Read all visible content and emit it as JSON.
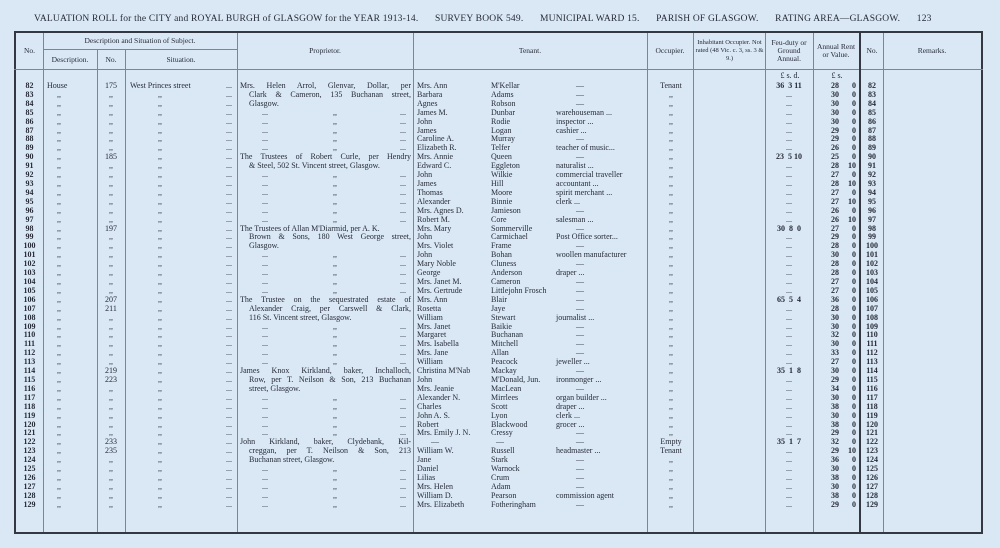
{
  "title": {
    "roll": "VALUATION ROLL for the CITY and ROYAL BURGH of GLASGOW for the YEAR 1913-14.",
    "survey_book": "SURVEY BOOK 549.",
    "ward": "MUNICIPAL WARD 15.",
    "parish": "PARISH OF GLASGOW.",
    "rating_area": "RATING AREA—GLASGOW.",
    "page": "123"
  },
  "headers": {
    "no": "No.",
    "description_group": "Description and Situation of Subject.",
    "description": "Description.",
    "house_no": "No.",
    "situation": "Situation.",
    "proprietor": "Proprietor.",
    "tenant": "Tenant.",
    "occupier": "Occupier.",
    "inhabitant": "Inhabitant Occupier. Not rated (48 Vic. c. 3, ss. 3 & 9.)",
    "feu_duty": "Feu-duty or Ground Annual.",
    "annual_rent": "Annual Rent or Value.",
    "no2": "No.",
    "remarks": "Remarks.",
    "feu_units": "£  s.  d.",
    "rent_units": "£  s."
  },
  "marks": {
    "ditto": ",,",
    "leader": "...",
    "dash": "—"
  },
  "rows": [
    {
      "no": "82",
      "desc": "House",
      "hno": "175",
      "sit": "West Princes street",
      "prop": "Mrs. Helen Arrol, Glenvar, Dollar, per",
      "first": "Mrs. Ann",
      "sur": "M'Kellar",
      "occ": "—",
      "occupier": "Tenant",
      "feu": "36  3 11",
      "rl": "28",
      "rs": "0"
    },
    {
      "no": "83",
      "desc": ",,",
      "hno": ",,",
      "sit": ",,",
      "prop": "Clark & Cameron, 135 Buchanan street,",
      "first": "Barbara",
      "sur": "Adams",
      "occ": "—",
      "occupier": ",,",
      "feu": "...",
      "rl": "30",
      "rs": "0"
    },
    {
      "no": "84",
      "desc": ",,",
      "hno": ",,",
      "sit": ",,",
      "prop": "Glasgow.",
      "first": "Agnes",
      "sur": "Robson",
      "occ": "—",
      "occupier": ",,",
      "feu": "...",
      "rl": "30",
      "rs": "0"
    },
    {
      "no": "85",
      "desc": ",,",
      "hno": ",,",
      "sit": ",,",
      "prop": "",
      "first": "James M.",
      "sur": "Dunbar",
      "occ": "warehouseman ...",
      "occupier": ",,",
      "feu": "...",
      "rl": "30",
      "rs": "0"
    },
    {
      "no": "86",
      "desc": ",,",
      "hno": ",,",
      "sit": ",,",
      "prop": "",
      "first": "John",
      "sur": "Rodie",
      "occ": "inspector ...",
      "occupier": ",,",
      "feu": "...",
      "rl": "30",
      "rs": "0"
    },
    {
      "no": "87",
      "desc": ",,",
      "hno": ",,",
      "sit": ",,",
      "prop": "",
      "first": "James",
      "sur": "Logan",
      "occ": "cashier ...",
      "occupier": ",,",
      "feu": "...",
      "rl": "29",
      "rs": "0"
    },
    {
      "no": "88",
      "desc": ",,",
      "hno": ",,",
      "sit": ",,",
      "prop": "",
      "first": "Caroline A.",
      "sur": "Murray",
      "occ": "—",
      "occupier": ",,",
      "feu": "...",
      "rl": "29",
      "rs": "0"
    },
    {
      "no": "89",
      "desc": ",,",
      "hno": ",,",
      "sit": ",,",
      "prop": "",
      "first": "Elizabeth R.",
      "sur": "Telfer",
      "occ": "teacher of music...",
      "occupier": ",,",
      "feu": "...",
      "rl": "26",
      "rs": "0"
    },
    {
      "no": "90",
      "desc": ",,",
      "hno": "185",
      "sit": ",,",
      "prop": "The Trustees of Robert Curle, per Hendry",
      "first": "Mrs. Annie",
      "sur": "Queen",
      "occ": "—",
      "occupier": ",,",
      "feu": "23  5 10",
      "rl": "25",
      "rs": "0"
    },
    {
      "no": "91",
      "desc": ",,",
      "hno": ",,",
      "sit": ",,",
      "prop": "& Steel, 502 St. Vincent street, Glasgow.",
      "first": "Edward C.",
      "sur": "Eggleton",
      "occ": "naturalist ...",
      "occupier": ",,",
      "feu": "...",
      "rl": "28",
      "rs": "10"
    },
    {
      "no": "92",
      "desc": ",,",
      "hno": ",,",
      "sit": ",,",
      "prop": "",
      "first": "John",
      "sur": "Wilkie",
      "occ": "commercial traveller",
      "occupier": ",,",
      "feu": "...",
      "rl": "27",
      "rs": "0"
    },
    {
      "no": "93",
      "desc": ",,",
      "hno": ",,",
      "sit": ",,",
      "prop": "",
      "first": "James",
      "sur": "Hill",
      "occ": "accountant ...",
      "occupier": ",,",
      "feu": "...",
      "rl": "28",
      "rs": "10"
    },
    {
      "no": "94",
      "desc": ",,",
      "hno": ",,",
      "sit": ",,",
      "prop": "",
      "first": "Thomas",
      "sur": "Moore",
      "occ": "spirit merchant ...",
      "occupier": ",,",
      "feu": "...",
      "rl": "27",
      "rs": "0"
    },
    {
      "no": "95",
      "desc": ",,",
      "hno": ",,",
      "sit": ",,",
      "prop": "",
      "first": "Alexander",
      "sur": "Binnie",
      "occ": "clerk ...",
      "occupier": ",,",
      "feu": "...",
      "rl": "27",
      "rs": "10"
    },
    {
      "no": "96",
      "desc": ",,",
      "hno": ",,",
      "sit": ",,",
      "prop": "",
      "first": "Mrs. Agnes D.",
      "sur": "Jamieson",
      "occ": "—",
      "occupier": ",,",
      "feu": "...",
      "rl": "26",
      "rs": "0"
    },
    {
      "no": "97",
      "desc": ",,",
      "hno": ",,",
      "sit": ",,",
      "prop": "",
      "first": "Robert M.",
      "sur": "Core",
      "occ": "salesman ...",
      "occupier": ",,",
      "feu": "...",
      "rl": "26",
      "rs": "10"
    },
    {
      "no": "98",
      "desc": ",,",
      "hno": "197",
      "sit": ",,",
      "prop": "The Trustees of Allan M'Diarmid, per A. K.",
      "first": "Mrs. Mary",
      "sur": "Sommerville",
      "occ": "—",
      "occupier": ",,",
      "feu": "30  8  0",
      "rl": "27",
      "rs": "0"
    },
    {
      "no": "99",
      "desc": ",,",
      "hno": ",,",
      "sit": ",,",
      "prop": "Brown & Sons, 180 West George street,",
      "first": "John",
      "sur": "Carmichael",
      "occ": "Post Office sorter...",
      "occupier": ",,",
      "feu": "...",
      "rl": "29",
      "rs": "0"
    },
    {
      "no": "100",
      "desc": ",,",
      "hno": ",,",
      "sit": ",,",
      "prop": "Glasgow.",
      "first": "Mrs. Violet",
      "sur": "Frame",
      "occ": "—",
      "occupier": ",,",
      "feu": "...",
      "rl": "28",
      "rs": "0"
    },
    {
      "no": "101",
      "desc": ",,",
      "hno": ",,",
      "sit": ",,",
      "prop": "",
      "first": "John",
      "sur": "Bohan",
      "occ": "woollen manufacturer",
      "occupier": ",,",
      "feu": "...",
      "rl": "30",
      "rs": "0"
    },
    {
      "no": "102",
      "desc": ",,",
      "hno": ",,",
      "sit": ",,",
      "prop": "",
      "first": "Mary Noble",
      "sur": "Cluness",
      "occ": "—",
      "occupier": ",,",
      "feu": "...",
      "rl": "28",
      "rs": "0"
    },
    {
      "no": "103",
      "desc": ",,",
      "hno": ",,",
      "sit": ",,",
      "prop": "",
      "first": "George",
      "sur": "Anderson",
      "occ": "draper ...",
      "occupier": ",,",
      "feu": "...",
      "rl": "28",
      "rs": "0"
    },
    {
      "no": "104",
      "desc": ",,",
      "hno": ",,",
      "sit": ",,",
      "prop": "",
      "first": "Mrs. Janet M.",
      "sur": "Cameron",
      "occ": "—",
      "occupier": ",,",
      "feu": "...",
      "rl": "27",
      "rs": "0"
    },
    {
      "no": "105",
      "desc": ",,",
      "hno": ",,",
      "sit": ",,",
      "prop": "",
      "first": "Mrs. Gertrude",
      "sur": "Littlejohn Frosch",
      "occ": "—",
      "occupier": ",,",
      "feu": "...",
      "rl": "27",
      "rs": "0"
    },
    {
      "no": "106",
      "desc": ",,",
      "hno": "207",
      "sit": ",,",
      "prop": "The Trustee on the sequestrated estate of",
      "first": "Mrs. Ann",
      "sur": "Blair",
      "occ": "—",
      "occupier": ",,",
      "feu": "65  5  4",
      "rl": "36",
      "rs": "0"
    },
    {
      "no": "107",
      "desc": ",,",
      "hno": "211",
      "sit": ",,",
      "prop": "Alexander Craig, per Carswell & Clark,",
      "first": "Rosetta",
      "sur": "Jaye",
      "occ": "—",
      "occupier": ",,",
      "feu": "...",
      "rl": "28",
      "rs": "0"
    },
    {
      "no": "108",
      "desc": ",,",
      "hno": ",,",
      "sit": ",,",
      "prop": "116 St. Vincent street, Glasgow.",
      "first": "William",
      "sur": "Stewart",
      "occ": "journalist ...",
      "occupier": ",,",
      "feu": "...",
      "rl": "30",
      "rs": "0"
    },
    {
      "no": "109",
      "desc": ",,",
      "hno": ",,",
      "sit": ",,",
      "prop": "",
      "first": "Mrs. Janet",
      "sur": "Baikie",
      "occ": "—",
      "occupier": ",,",
      "feu": "...",
      "rl": "30",
      "rs": "0"
    },
    {
      "no": "110",
      "desc": ",,",
      "hno": ",,",
      "sit": ",,",
      "prop": "",
      "first": "Margaret",
      "sur": "Buchanan",
      "occ": "—",
      "occupier": ",,",
      "feu": "...",
      "rl": "32",
      "rs": "0"
    },
    {
      "no": "111",
      "desc": ",,",
      "hno": ",,",
      "sit": ",,",
      "prop": "",
      "first": "Mrs. Isabella",
      "sur": "Mitchell",
      "occ": "—",
      "occupier": ",,",
      "feu": "...",
      "rl": "30",
      "rs": "0"
    },
    {
      "no": "112",
      "desc": ",,",
      "hno": ",,",
      "sit": ",,",
      "prop": "",
      "first": "Mrs. Jane",
      "sur": "Allan",
      "occ": "—",
      "occupier": ",,",
      "feu": "...",
      "rl": "33",
      "rs": "0"
    },
    {
      "no": "113",
      "desc": ",,",
      "hno": ",,",
      "sit": ",,",
      "prop": "",
      "first": "William",
      "sur": "Peacock",
      "occ": "jeweller ...",
      "occupier": ",,",
      "feu": "...",
      "rl": "27",
      "rs": "0"
    },
    {
      "no": "114",
      "desc": ",,",
      "hno": "219",
      "sit": ",,",
      "prop": "James Knox Kirkland, baker, Inchalloch,",
      "first": "Christina M'Nab",
      "sur": "Mackay",
      "occ": "—",
      "occupier": ",,",
      "feu": "35  1  8",
      "rl": "30",
      "rs": "0"
    },
    {
      "no": "115",
      "desc": ",,",
      "hno": "223",
      "sit": ",,",
      "prop": "Row, per T. Neilson & Son, 213 Buchanan",
      "first": "John",
      "sur": "M'Donald, Jun.",
      "occ": "ironmonger ...",
      "occupier": ",,",
      "feu": "...",
      "rl": "29",
      "rs": "0"
    },
    {
      "no": "116",
      "desc": ",,",
      "hno": ",,",
      "sit": ",,",
      "prop": "street, Glasgow.",
      "first": "Mrs. Jeanie",
      "sur": "MacLean",
      "occ": "—",
      "occupier": ",,",
      "feu": "...",
      "rl": "34",
      "rs": "0"
    },
    {
      "no": "117",
      "desc": ",,",
      "hno": ",,",
      "sit": ",,",
      "prop": "",
      "first": "Alexander N.",
      "sur": "Mirrlees",
      "occ": "organ builder ...",
      "occupier": ",,",
      "feu": "...",
      "rl": "30",
      "rs": "0"
    },
    {
      "no": "118",
      "desc": ",,",
      "hno": ",,",
      "sit": ",,",
      "prop": "",
      "first": "Charles",
      "sur": "Scott",
      "occ": "draper ...",
      "occupier": ",,",
      "feu": "...",
      "rl": "38",
      "rs": "0"
    },
    {
      "no": "119",
      "desc": ",,",
      "hno": ",,",
      "sit": ",,",
      "prop": "",
      "first": "John A. S.",
      "sur": "Lyon",
      "occ": "clerk ...",
      "occupier": ",,",
      "feu": "...",
      "rl": "30",
      "rs": "0"
    },
    {
      "no": "120",
      "desc": ",,",
      "hno": ",,",
      "sit": ",,",
      "prop": "",
      "first": "Robert",
      "sur": "Blackwood",
      "occ": "grocer ...",
      "occupier": ",,",
      "feu": "...",
      "rl": "38",
      "rs": "0"
    },
    {
      "no": "121",
      "desc": ",,",
      "hno": ",,",
      "sit": ",,",
      "prop": "",
      "first": "Mrs. Emily J. N.",
      "sur": "Cressy",
      "occ": "—",
      "occupier": ",,",
      "feu": "...",
      "rl": "29",
      "rs": "0"
    },
    {
      "no": "122",
      "desc": ",,",
      "hno": "233",
      "sit": ",,",
      "prop": "John Kirkland, baker, Clydebank, Kil-",
      "first": "—",
      "sur": "—",
      "occ": "—",
      "occupier": "Empty",
      "feu": "35  1  7",
      "rl": "32",
      "rs": "0"
    },
    {
      "no": "123",
      "desc": ",,",
      "hno": "235",
      "sit": ",,",
      "prop": "creggan, per T. Neilson & Son, 213",
      "first": "William W.",
      "sur": "Russell",
      "occ": "headmaster ...",
      "occupier": "Tenant",
      "feu": "...",
      "rl": "29",
      "rs": "10"
    },
    {
      "no": "124",
      "desc": ",,",
      "hno": ",,",
      "sit": ",,",
      "prop": "Buchanan street, Glasgow.",
      "first": "Jane",
      "sur": "Stark",
      "occ": "—",
      "occupier": ",,",
      "feu": "...",
      "rl": "36",
      "rs": "0"
    },
    {
      "no": "125",
      "desc": ",,",
      "hno": ",,",
      "sit": ",,",
      "prop": "",
      "first": "Daniel",
      "sur": "Warnock",
      "occ": "—",
      "occupier": ",,",
      "feu": "...",
      "rl": "30",
      "rs": "0"
    },
    {
      "no": "126",
      "desc": ",,",
      "hno": ",,",
      "sit": ",,",
      "prop": "",
      "first": "Lilias",
      "sur": "Crum",
      "occ": "—",
      "occupier": ",,",
      "feu": "...",
      "rl": "38",
      "rs": "0"
    },
    {
      "no": "127",
      "desc": ",,",
      "hno": ",,",
      "sit": ",,",
      "prop": "",
      "first": "Mrs. Helen",
      "sur": "Adam",
      "occ": "—",
      "occupier": ",,",
      "feu": "...",
      "rl": "30",
      "rs": "0"
    },
    {
      "no": "128",
      "desc": ",,",
      "hno": ",,",
      "sit": ",,",
      "prop": "",
      "first": "William D.",
      "sur": "Pearson",
      "occ": "commission agent",
      "occupier": ",,",
      "feu": "...",
      "rl": "38",
      "rs": "0"
    },
    {
      "no": "129",
      "desc": ",,",
      "hno": ",,",
      "sit": ",,",
      "prop": "",
      "first": "Mrs. Elizabeth",
      "sur": "Fotheringham",
      "occ": "—",
      "occupier": ",,",
      "feu": "...",
      "rl": "29",
      "rs": "0"
    }
  ],
  "colors": {
    "paper": "#dae8f6",
    "ink": "#262a36"
  }
}
